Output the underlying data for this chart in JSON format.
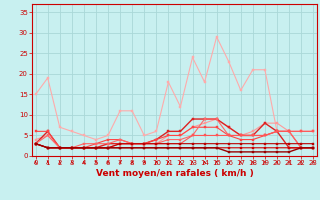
{
  "background_color": "#c8f0f0",
  "grid_color": "#aad8d8",
  "x_label": "Vent moyen/en rafales ( km/h )",
  "x_ticks": [
    0,
    1,
    2,
    3,
    4,
    5,
    6,
    7,
    8,
    9,
    10,
    11,
    12,
    13,
    14,
    15,
    16,
    17,
    18,
    19,
    20,
    21,
    22,
    23
  ],
  "y_ticks": [
    0,
    5,
    10,
    15,
    20,
    25,
    30,
    35
  ],
  "ylim": [
    0,
    37
  ],
  "xlim": [
    -0.3,
    23.3
  ],
  "series": [
    {
      "x": [
        0,
        1,
        2,
        3,
        4,
        5,
        6,
        7,
        8,
        9,
        10,
        11,
        12,
        13,
        14,
        15,
        16,
        17,
        18,
        19,
        20,
        21,
        22,
        23
      ],
      "y": [
        15,
        19,
        7,
        6,
        5,
        4,
        5,
        11,
        11,
        5,
        6,
        18,
        12,
        24,
        18,
        29,
        23,
        16,
        21,
        21,
        6,
        6,
        6,
        6
      ],
      "color": "#ffaaaa",
      "lw": 0.8,
      "marker": "s",
      "ms": 1.5
    },
    {
      "x": [
        0,
        1,
        2,
        3,
        4,
        5,
        6,
        7,
        8,
        9,
        10,
        11,
        12,
        13,
        14,
        15,
        16,
        17,
        18,
        19,
        20,
        21,
        22,
        23
      ],
      "y": [
        4,
        5,
        2,
        2,
        2,
        2,
        2,
        3,
        3,
        3,
        3,
        5,
        5,
        7,
        8,
        9,
        7,
        5,
        6,
        8,
        8,
        6,
        6,
        6
      ],
      "color": "#ff9999",
      "lw": 0.8,
      "marker": "s",
      "ms": 1.5
    },
    {
      "x": [
        0,
        1,
        2,
        3,
        4,
        5,
        6,
        7,
        8,
        9,
        10,
        11,
        12,
        13,
        14,
        15,
        16,
        17,
        18,
        19,
        20,
        21,
        22,
        23
      ],
      "y": [
        3,
        6,
        2,
        2,
        2,
        2,
        3,
        3,
        3,
        3,
        4,
        6,
        6,
        9,
        9,
        9,
        7,
        5,
        5,
        8,
        6,
        2,
        2,
        2
      ],
      "color": "#dd2222",
      "lw": 1.0,
      "marker": "s",
      "ms": 1.5
    },
    {
      "x": [
        0,
        1,
        2,
        3,
        4,
        5,
        6,
        7,
        8,
        9,
        10,
        11,
        12,
        13,
        14,
        15,
        16,
        17,
        18,
        19,
        20,
        21,
        22,
        23
      ],
      "y": [
        6,
        6,
        2,
        2,
        2,
        3,
        4,
        4,
        3,
        3,
        4,
        5,
        5,
        7,
        7,
        7,
        5,
        4,
        4,
        5,
        6,
        6,
        2,
        2
      ],
      "color": "#ff4444",
      "lw": 0.8,
      "marker": "s",
      "ms": 1.5
    },
    {
      "x": [
        0,
        1,
        2,
        3,
        4,
        5,
        6,
        7,
        8,
        9,
        10,
        11,
        12,
        13,
        14,
        15,
        16,
        17,
        18,
        19,
        20,
        21,
        22,
        23
      ],
      "y": [
        3,
        5,
        2,
        2,
        3,
        3,
        3,
        4,
        3,
        3,
        3,
        4,
        4,
        5,
        9,
        9,
        5,
        5,
        5,
        5,
        6,
        6,
        2,
        2
      ],
      "color": "#ff6666",
      "lw": 0.8,
      "marker": "s",
      "ms": 1.5
    },
    {
      "x": [
        0,
        1,
        2,
        3,
        4,
        5,
        6,
        7,
        8,
        9,
        10,
        11,
        12,
        13,
        14,
        15,
        16,
        17,
        18,
        19,
        20,
        21,
        22,
        23
      ],
      "y": [
        3,
        2,
        2,
        2,
        2,
        2,
        2,
        3,
        3,
        3,
        3,
        3,
        3,
        5,
        5,
        5,
        5,
        5,
        5,
        5,
        6,
        6,
        6,
        6
      ],
      "color": "#ff5555",
      "lw": 0.8,
      "marker": "s",
      "ms": 1.5
    },
    {
      "x": [
        0,
        1,
        2,
        3,
        4,
        5,
        6,
        7,
        8,
        9,
        10,
        11,
        12,
        13,
        14,
        15,
        16,
        17,
        18,
        19,
        20,
        21,
        22,
        23
      ],
      "y": [
        3,
        2,
        2,
        2,
        2,
        2,
        2,
        2,
        2,
        2,
        2,
        2,
        2,
        2,
        2,
        2,
        2,
        2,
        2,
        2,
        2,
        2,
        2,
        2
      ],
      "color": "#cc0000",
      "lw": 0.8,
      "marker": "s",
      "ms": 1.5
    },
    {
      "x": [
        0,
        1,
        2,
        3,
        4,
        5,
        6,
        7,
        8,
        9,
        10,
        11,
        12,
        13,
        14,
        15,
        16,
        17,
        18,
        19,
        20,
        21,
        22,
        23
      ],
      "y": [
        3,
        2,
        2,
        2,
        2,
        2,
        2,
        3,
        3,
        3,
        3,
        3,
        3,
        3,
        3,
        3,
        3,
        3,
        3,
        3,
        3,
        3,
        3,
        3
      ],
      "color": "#bb0000",
      "lw": 0.8,
      "marker": "s",
      "ms": 1.5
    },
    {
      "x": [
        0,
        1,
        2,
        3,
        4,
        5,
        6,
        7,
        8,
        9,
        10,
        11,
        12,
        13,
        14,
        15,
        16,
        17,
        18,
        19,
        20,
        21,
        22,
        23
      ],
      "y": [
        3,
        2,
        2,
        2,
        2,
        2,
        2,
        2,
        2,
        2,
        2,
        2,
        2,
        2,
        2,
        2,
        1,
        1,
        1,
        1,
        1,
        1,
        2,
        2
      ],
      "color": "#990000",
      "lw": 1.0,
      "marker": "s",
      "ms": 1.5
    }
  ],
  "tick_fontsize": 5.0,
  "label_fontsize": 6.5,
  "tick_color": "#cc0000",
  "label_color": "#cc0000"
}
